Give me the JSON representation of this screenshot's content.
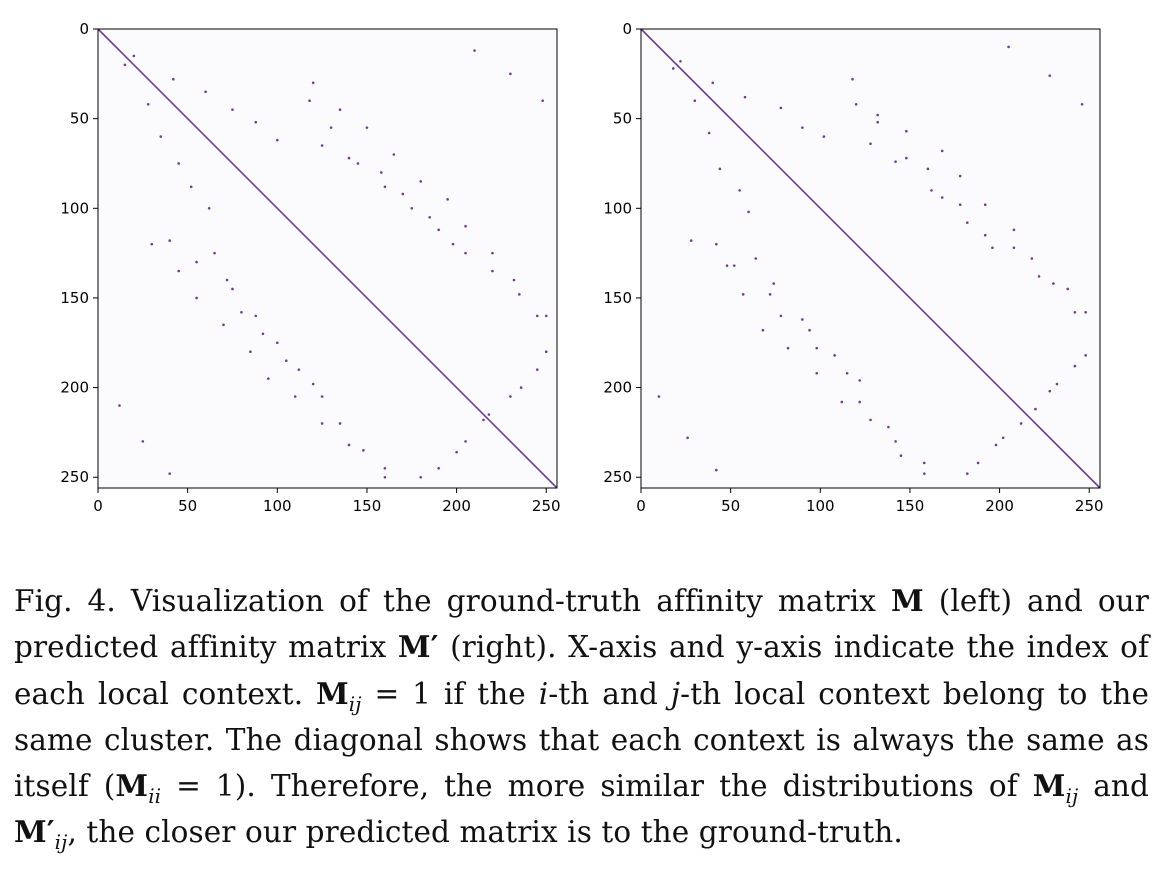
{
  "chart_data": [
    {
      "type": "heatmap",
      "n": 256,
      "xlim": [
        0,
        256
      ],
      "ylim": [
        256,
        0
      ],
      "xticks": [
        0,
        50,
        100,
        150,
        200,
        250
      ],
      "yticks": [
        0,
        50,
        100,
        150,
        200,
        250
      ],
      "xtick_labels": [
        "0",
        "50",
        "100",
        "150",
        "200",
        "250"
      ],
      "ytick_labels": [
        "0",
        "50",
        "100",
        "150",
        "200",
        "250"
      ],
      "background_color": "#fbfbfd",
      "point_color": "#6a3d9a",
      "diagonal": true,
      "values": "binary affinity matrix, 1 on the diagonal and at scattered off-diagonal cells",
      "sample_points": [
        [
          15,
          20
        ],
        [
          42,
          28
        ],
        [
          60,
          35
        ],
        [
          75,
          45
        ],
        [
          88,
          52
        ],
        [
          100,
          62
        ],
        [
          118,
          40
        ],
        [
          130,
          55
        ],
        [
          145,
          75
        ],
        [
          160,
          88
        ],
        [
          175,
          100
        ],
        [
          190,
          112
        ],
        [
          205,
          125
        ],
        [
          220,
          135
        ],
        [
          235,
          148
        ],
        [
          250,
          160
        ],
        [
          30,
          120
        ],
        [
          45,
          135
        ],
        [
          55,
          150
        ],
        [
          70,
          165
        ],
        [
          85,
          180
        ],
        [
          95,
          195
        ],
        [
          110,
          205
        ],
        [
          125,
          220
        ],
        [
          140,
          232
        ],
        [
          160,
          245
        ],
        [
          180,
          250
        ],
        [
          200,
          236
        ],
        [
          215,
          218
        ],
        [
          230,
          205
        ],
        [
          245,
          190
        ],
        [
          12,
          210
        ],
        [
          25,
          230
        ],
        [
          40,
          248
        ],
        [
          65,
          125
        ],
        [
          72,
          140
        ],
        [
          80,
          158
        ],
        [
          92,
          170
        ],
        [
          105,
          185
        ],
        [
          120,
          198
        ]
      ]
    },
    {
      "type": "heatmap",
      "n": 256,
      "xlim": [
        0,
        256
      ],
      "ylim": [
        256,
        0
      ],
      "xticks": [
        0,
        50,
        100,
        150,
        200,
        250
      ],
      "yticks": [
        0,
        50,
        100,
        150,
        200,
        250
      ],
      "xtick_labels": [
        "0",
        "50",
        "100",
        "150",
        "200",
        "250"
      ],
      "ytick_labels": [
        "0",
        "50",
        "100",
        "150",
        "200",
        "250"
      ],
      "background_color": "#fbfbfd",
      "point_color": "#6a3d9a",
      "diagonal": true,
      "values": "binary predicted affinity matrix, 1 on the diagonal and at scattered off-diagonal cells",
      "sample_points": [
        [
          18,
          22
        ],
        [
          40,
          30
        ],
        [
          58,
          38
        ],
        [
          78,
          44
        ],
        [
          90,
          55
        ],
        [
          102,
          60
        ],
        [
          120,
          42
        ],
        [
          132,
          52
        ],
        [
          148,
          72
        ],
        [
          162,
          90
        ],
        [
          178,
          98
        ],
        [
          192,
          115
        ],
        [
          208,
          122
        ],
        [
          222,
          138
        ],
        [
          238,
          145
        ],
        [
          248,
          158
        ],
        [
          28,
          118
        ],
        [
          48,
          132
        ],
        [
          57,
          148
        ],
        [
          68,
          168
        ],
        [
          82,
          178
        ],
        [
          98,
          192
        ],
        [
          112,
          208
        ],
        [
          128,
          218
        ],
        [
          142,
          230
        ],
        [
          158,
          242
        ],
        [
          182,
          248
        ],
        [
          198,
          232
        ],
        [
          212,
          220
        ],
        [
          228,
          202
        ],
        [
          242,
          188
        ],
        [
          10,
          205
        ],
        [
          26,
          228
        ],
        [
          42,
          246
        ],
        [
          64,
          128
        ],
        [
          74,
          142
        ],
        [
          78,
          160
        ],
        [
          94,
          168
        ],
        [
          108,
          182
        ],
        [
          122,
          196
        ]
      ]
    }
  ],
  "caption": {
    "p1": "Fig. 4.  Visualization of the ground-truth affinity matrix ",
    "M": "M",
    "p2": " (left) and our predicted affinity matrix ",
    "Mprime": "M′",
    "p3": " (right). X-axis and y-axis indicate the index of each local context. ",
    "Mij1": "M",
    "ij1": "ij",
    "p4": " = 1 if the ",
    "i": "i",
    "p5": "-th and ",
    "j": "j",
    "p6": "-th local context belong to the same cluster. The diagonal shows that each context is always the same as itself (",
    "Mii": "M",
    "ii": "ii",
    "p7": " = 1). Therefore, the more similar the distributions of ",
    "Mij2": "M",
    "ij2": "ij",
    "p8": " and ",
    "Mprime2": "M′",
    "ij3": "ij",
    "p9": ", the closer our predicted matrix is to the ground-truth."
  }
}
